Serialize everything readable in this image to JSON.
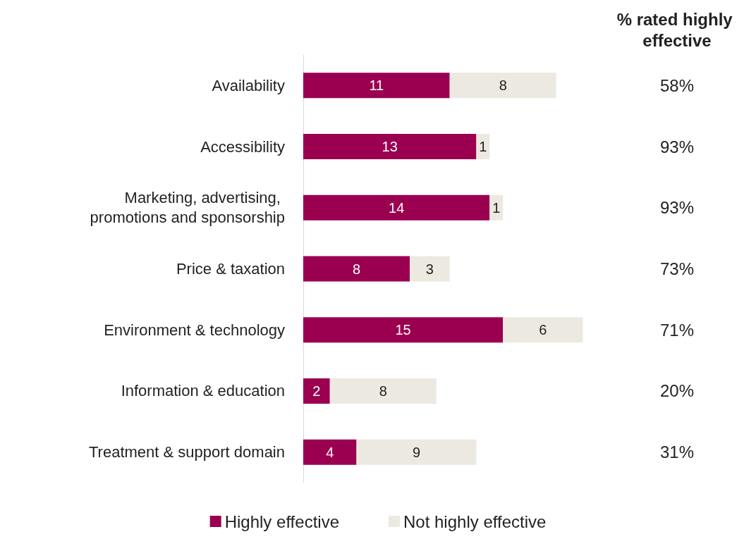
{
  "chart_data": {
    "type": "bar",
    "orientation": "horizontal",
    "stacked": true,
    "data_labels": true,
    "grid": false,
    "legend": "bottom",
    "categories": [
      "Availability",
      "Accessibility",
      "Marketing, advertising, promotions and sponsorship",
      "Price & taxation",
      "Environment & technology",
      "Information & education",
      "Treatment & support domain"
    ],
    "series": [
      {
        "name": "Highly effective",
        "color": "#9b0050",
        "values": [
          11,
          13,
          14,
          8,
          15,
          2,
          4
        ]
      },
      {
        "name": "Not highly effective",
        "color": "#ece9e0",
        "values": [
          8,
          1,
          1,
          3,
          6,
          8,
          9
        ]
      }
    ],
    "annotations": [
      "% rated highly effective",
      "58%",
      "93%",
      "93%",
      "73%",
      "71%",
      "20%",
      "31%"
    ]
  }
}
